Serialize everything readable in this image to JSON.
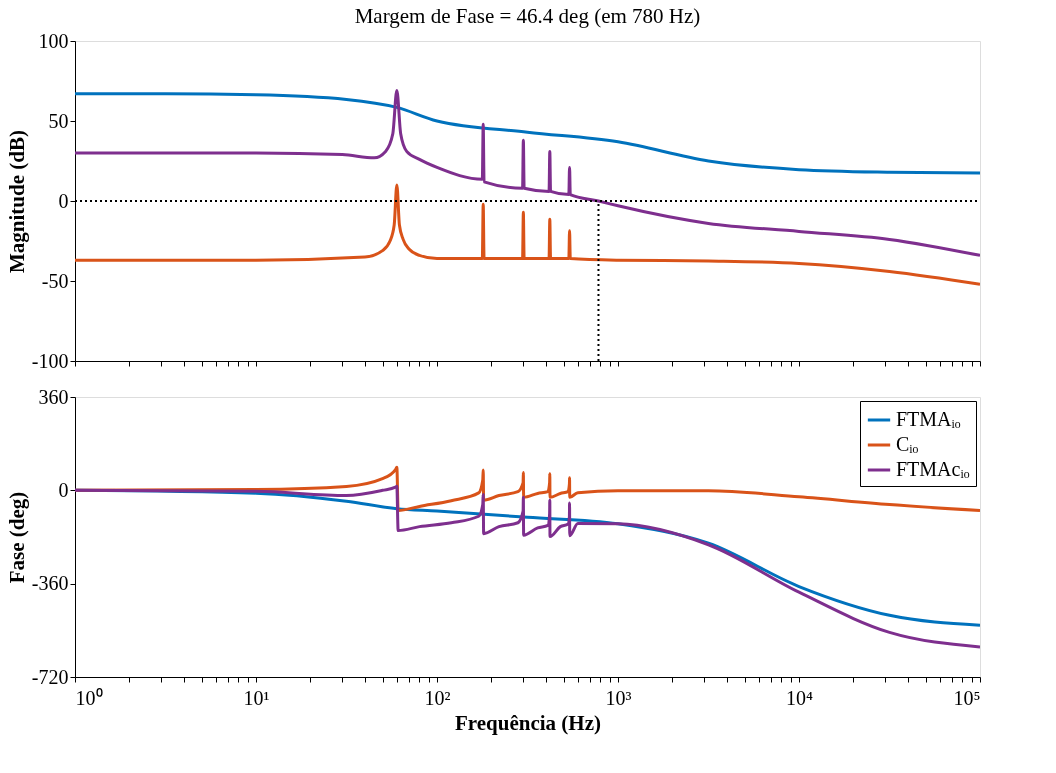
{
  "chart_data": [
    {
      "type": "line",
      "title": "Margem de Fase = 46.4 deg (em 780 Hz)",
      "ylabel": "Magnitude (dB)",
      "log": "x",
      "xlim": [
        1,
        100000
      ],
      "ylim": [
        -100,
        100
      ],
      "yticks": [
        -100,
        -50,
        0,
        50,
        100
      ],
      "xticks": [
        {
          "value": 1,
          "label": null
        },
        {
          "value": 2,
          "label": null
        },
        {
          "value": 3,
          "label": null
        },
        {
          "value": 4,
          "label": null
        },
        {
          "value": 5,
          "label": null
        },
        {
          "value": 6,
          "label": null
        },
        {
          "value": 7,
          "label": null
        },
        {
          "value": 8,
          "label": null
        },
        {
          "value": 9,
          "label": null
        },
        {
          "value": 10,
          "label": null
        },
        {
          "value": 20,
          "label": null
        },
        {
          "value": 30,
          "label": null
        },
        {
          "value": 40,
          "label": null
        },
        {
          "value": 50,
          "label": null
        },
        {
          "value": 60,
          "label": null
        },
        {
          "value": 70,
          "label": null
        },
        {
          "value": 80,
          "label": null
        },
        {
          "value": 90,
          "label": null
        },
        {
          "value": 100,
          "label": null
        },
        {
          "value": 200,
          "label": null
        },
        {
          "value": 300,
          "label": null
        },
        {
          "value": 400,
          "label": null
        },
        {
          "value": 500,
          "label": null
        },
        {
          "value": 600,
          "label": null
        },
        {
          "value": 700,
          "label": null
        },
        {
          "value": 800,
          "label": null
        },
        {
          "value": 900,
          "label": null
        },
        {
          "value": 1000,
          "label": null
        },
        {
          "value": 2000,
          "label": null
        },
        {
          "value": 3000,
          "label": null
        },
        {
          "value": 4000,
          "label": null
        },
        {
          "value": 5000,
          "label": null
        },
        {
          "value": 6000,
          "label": null
        },
        {
          "value": 7000,
          "label": null
        },
        {
          "value": 8000,
          "label": null
        },
        {
          "value": 9000,
          "label": null
        },
        {
          "value": 10000,
          "label": null
        },
        {
          "value": 20000,
          "label": null
        },
        {
          "value": 30000,
          "label": null
        },
        {
          "value": 40000,
          "label": null
        },
        {
          "value": 50000,
          "label": null
        },
        {
          "value": 60000,
          "label": null
        },
        {
          "value": 70000,
          "label": null
        },
        {
          "value": 80000,
          "label": null
        },
        {
          "value": 90000,
          "label": null
        },
        {
          "value": 100000,
          "label": null
        }
      ],
      "tick_labels": "y",
      "grid": false,
      "legend": false,
      "line_style": "solid",
      "marker": "none",
      "ref_lines": [
        {
          "axis": "y",
          "value": 0,
          "color": "#000000",
          "line_style": "dotted"
        },
        {
          "axis": "x",
          "value": 780,
          "color": "#000000",
          "line_style": "dotted"
        }
      ],
      "series": [
        {
          "color": "#0072bd",
          "x": [
            1,
            3.16,
            10,
            31.6,
            60,
            100,
            316,
            1000,
            3162,
            10000,
            31623,
            100000
          ],
          "values": [
            67,
            67,
            66.4,
            63.5,
            58.5,
            50,
            43,
            37,
            25,
            19.6,
            18,
            17.5
          ]
        },
        {
          "color": "#d95319",
          "x": [
            1,
            10,
            40,
            50,
            55,
            58,
            60,
            62,
            65,
            70,
            80,
            100,
            178,
            180,
            182,
            297,
            300,
            303,
            416,
            420,
            424,
            535,
            540,
            545,
            1000,
            3162,
            10000,
            31623,
            100000
          ],
          "values": [
            -37,
            -37,
            -35,
            -31,
            -25,
            -15,
            10,
            -15,
            -24,
            -30,
            -34,
            -36,
            -36,
            -2,
            -36,
            -36,
            -7,
            -36,
            -36,
            -11.4,
            -36,
            -36,
            -18.6,
            -36,
            -37,
            -37.5,
            -39,
            -44,
            -52
          ]
        },
        {
          "color": "#7e2f8e",
          "x": [
            1,
            10,
            30,
            45,
            52,
            57,
            60,
            63,
            68,
            80,
            100,
            178,
            180,
            182,
            297,
            300,
            303,
            416,
            420,
            424,
            535,
            540,
            545,
            780,
            1000,
            3162,
            10000,
            31623,
            100000
          ],
          "values": [
            30,
            30,
            29,
            27,
            31,
            42,
            69,
            42,
            31,
            26,
            21,
            13.6,
            48,
            12,
            8,
            38,
            8,
            6,
            31,
            6,
            4,
            21,
            4,
            0,
            -3,
            -14,
            -19,
            -24,
            -34
          ]
        }
      ]
    },
    {
      "type": "line",
      "xlabel": "Frequência  (Hz)",
      "ylabel": "Fase (deg)",
      "log": "x",
      "xlim": [
        1,
        100000
      ],
      "ylim": [
        -720,
        360
      ],
      "yticks": [
        -720,
        -360,
        0,
        360
      ],
      "xticks": [
        {
          "value": 1,
          "label": "10⁰"
        },
        {
          "value": 2,
          "label": null
        },
        {
          "value": 3,
          "label": null
        },
        {
          "value": 4,
          "label": null
        },
        {
          "value": 5,
          "label": null
        },
        {
          "value": 6,
          "label": null
        },
        {
          "value": 7,
          "label": null
        },
        {
          "value": 8,
          "label": null
        },
        {
          "value": 9,
          "label": null
        },
        {
          "value": 10,
          "label": "10¹"
        },
        {
          "value": 20,
          "label": null
        },
        {
          "value": 30,
          "label": null
        },
        {
          "value": 40,
          "label": null
        },
        {
          "value": 50,
          "label": null
        },
        {
          "value": 60,
          "label": null
        },
        {
          "value": 70,
          "label": null
        },
        {
          "value": 80,
          "label": null
        },
        {
          "value": 90,
          "label": null
        },
        {
          "value": 100,
          "label": "10²"
        },
        {
          "value": 200,
          "label": null
        },
        {
          "value": 300,
          "label": null
        },
        {
          "value": 400,
          "label": null
        },
        {
          "value": 500,
          "label": null
        },
        {
          "value": 600,
          "label": null
        },
        {
          "value": 700,
          "label": null
        },
        {
          "value": 800,
          "label": null
        },
        {
          "value": 900,
          "label": null
        },
        {
          "value": 1000,
          "label": "10³"
        },
        {
          "value": 2000,
          "label": null
        },
        {
          "value": 3000,
          "label": null
        },
        {
          "value": 4000,
          "label": null
        },
        {
          "value": 5000,
          "label": null
        },
        {
          "value": 6000,
          "label": null
        },
        {
          "value": 7000,
          "label": null
        },
        {
          "value": 8000,
          "label": null
        },
        {
          "value": 9000,
          "label": null
        },
        {
          "value": 10000,
          "label": "10⁴"
        },
        {
          "value": 20000,
          "label": null
        },
        {
          "value": 30000,
          "label": null
        },
        {
          "value": 40000,
          "label": null
        },
        {
          "value": 50000,
          "label": null
        },
        {
          "value": 60000,
          "label": null
        },
        {
          "value": 70000,
          "label": null
        },
        {
          "value": 80000,
          "label": null
        },
        {
          "value": 90000,
          "label": null
        },
        {
          "value": 100000,
          "label": "10⁵"
        }
      ],
      "grid": false,
      "legend": "top right",
      "line_style": "solid",
      "marker": "none",
      "series": [
        {
          "name": "FTMAᵢₒ",
          "color": "#0072bd",
          "x": [
            1,
            10,
            31.6,
            60,
            100,
            316,
            1000,
            3162,
            10000,
            31623,
            100000
          ],
          "values": [
            0,
            -11,
            -42,
            -71,
            -80,
            -104,
            -129,
            -204,
            -371,
            -482,
            -520
          ]
        },
        {
          "name": "Cᵢₒ",
          "color": "#d95319",
          "x": [
            1,
            10,
            31.6,
            50,
            59,
            60,
            61,
            80,
            120,
            170,
            179,
            180,
            181,
            220,
            280,
            299,
            300,
            301,
            360,
            410,
            419,
            420,
            421,
            480,
            530,
            539,
            540,
            541,
            600,
            1000,
            3162,
            10000,
            31623,
            100000
          ],
          "values": [
            0,
            3,
            15,
            45,
            80,
            89,
            -78,
            -62,
            -40,
            -10,
            40,
            78,
            -38,
            -20,
            -5,
            30,
            69,
            -27,
            -12,
            -5,
            30,
            64,
            -27,
            -12,
            -5,
            25,
            49,
            -27,
            -9,
            -2,
            -2,
            -25,
            -55,
            -78
          ]
        },
        {
          "name": "FTMAcᵢₒ",
          "color": "#7e2f8e",
          "x": [
            1,
            10,
            31.6,
            50,
            59,
            60,
            61,
            80,
            120,
            170,
            179,
            180,
            181,
            220,
            280,
            299,
            300,
            301,
            360,
            410,
            419,
            420,
            421,
            480,
            530,
            539,
            540,
            541,
            600,
            1000,
            3162,
            10000,
            31623,
            100000
          ],
          "values": [
            0,
            -4,
            -20,
            0,
            12,
            16,
            -155,
            -140,
            -125,
            -100,
            -55,
            -16,
            -167,
            -140,
            -125,
            -80,
            -27,
            -173,
            -145,
            -135,
            -90,
            -38,
            -178,
            -140,
            -130,
            -100,
            -49,
            -175,
            -128,
            -129,
            -210,
            -393,
            -548,
            -604
          ]
        }
      ]
    }
  ]
}
